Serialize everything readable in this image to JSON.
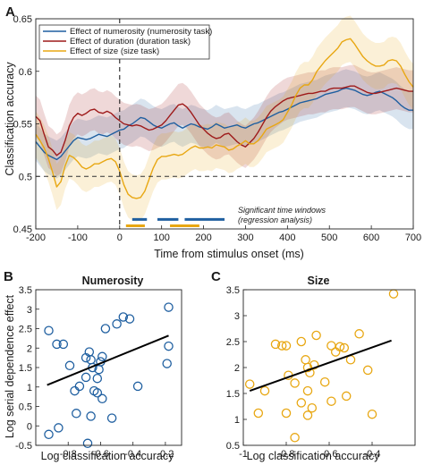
{
  "chart_data": [
    {
      "panel": "A",
      "type": "line",
      "xlabel": "Time from stimulus onset (ms)",
      "ylabel": "Classification accuracy",
      "xlim": [
        -200,
        700
      ],
      "ylim": [
        0.45,
        0.65
      ],
      "xticks": [
        -200,
        -100,
        0,
        100,
        200,
        300,
        400,
        500,
        600,
        700
      ],
      "yticks": [
        0.45,
        0.5,
        0.55,
        0.6,
        0.65
      ],
      "chance_level": 0.5,
      "onset_line_x": 0,
      "legend_position": "top-left",
      "x": [
        -200,
        -190,
        -180,
        -170,
        -160,
        -150,
        -140,
        -130,
        -120,
        -110,
        -100,
        -90,
        -80,
        -70,
        -60,
        -50,
        -40,
        -30,
        -20,
        -10,
        0,
        10,
        20,
        30,
        40,
        50,
        60,
        70,
        80,
        90,
        100,
        110,
        120,
        130,
        140,
        150,
        160,
        170,
        180,
        190,
        200,
        210,
        220,
        230,
        240,
        250,
        260,
        270,
        280,
        290,
        300,
        310,
        320,
        330,
        340,
        350,
        360,
        370,
        380,
        390,
        400,
        410,
        420,
        430,
        440,
        450,
        460,
        470,
        480,
        490,
        500,
        510,
        520,
        530,
        540,
        550,
        560,
        570,
        580,
        590,
        600,
        610,
        620,
        630,
        640,
        650,
        660,
        670,
        680,
        690,
        700
      ],
      "series": [
        {
          "name": "Effect of numerosity (numerosity task)",
          "color": "#1f5fa0",
          "band_halfwidth": 0.018,
          "values": [
            0.533,
            0.528,
            0.523,
            0.52,
            0.518,
            0.516,
            0.519,
            0.524,
            0.529,
            0.534,
            0.537,
            0.536,
            0.535,
            0.536,
            0.538,
            0.54,
            0.539,
            0.538,
            0.54,
            0.542,
            0.544,
            0.545,
            0.548,
            0.55,
            0.553,
            0.556,
            0.555,
            0.552,
            0.549,
            0.547,
            0.546,
            0.548,
            0.55,
            0.551,
            0.548,
            0.546,
            0.548,
            0.55,
            0.549,
            0.547,
            0.546,
            0.545,
            0.547,
            0.55,
            0.548,
            0.546,
            0.547,
            0.548,
            0.549,
            0.547,
            0.546,
            0.548,
            0.55,
            0.551,
            0.553,
            0.555,
            0.557,
            0.559,
            0.561,
            0.562,
            0.564,
            0.566,
            0.568,
            0.57,
            0.571,
            0.572,
            0.573,
            0.574,
            0.576,
            0.578,
            0.579,
            0.58,
            0.581,
            0.583,
            0.584,
            0.583,
            0.582,
            0.58,
            0.578,
            0.577,
            0.578,
            0.58,
            0.581,
            0.579,
            0.577,
            0.575,
            0.572,
            0.568,
            0.565,
            0.563,
            0.563
          ]
        },
        {
          "name": "Effect of duration (duration task)",
          "color": "#9e1a1a",
          "band_halfwidth": 0.02,
          "values": [
            0.557,
            0.553,
            0.54,
            0.528,
            0.525,
            0.52,
            0.523,
            0.534,
            0.548,
            0.556,
            0.56,
            0.558,
            0.56,
            0.563,
            0.564,
            0.561,
            0.56,
            0.562,
            0.56,
            0.556,
            0.553,
            0.55,
            0.549,
            0.548,
            0.549,
            0.548,
            0.546,
            0.544,
            0.545,
            0.547,
            0.549,
            0.553,
            0.558,
            0.563,
            0.568,
            0.569,
            0.566,
            0.561,
            0.555,
            0.549,
            0.545,
            0.541,
            0.538,
            0.536,
            0.537,
            0.54,
            0.541,
            0.537,
            0.533,
            0.53,
            0.528,
            0.532,
            0.536,
            0.542,
            0.549,
            0.556,
            0.562,
            0.566,
            0.569,
            0.572,
            0.574,
            0.575,
            0.576,
            0.577,
            0.578,
            0.579,
            0.579,
            0.58,
            0.581,
            0.581,
            0.583,
            0.584,
            0.584,
            0.584,
            0.585,
            0.586,
            0.586,
            0.584,
            0.582,
            0.58,
            0.579,
            0.579,
            0.58,
            0.581,
            0.582,
            0.583,
            0.584,
            0.583,
            0.582,
            0.581,
            0.581
          ]
        },
        {
          "name": "Effect of size (size task)",
          "color": "#e8a712",
          "band_halfwidth": 0.022,
          "values": [
            0.54,
            0.534,
            0.527,
            0.517,
            0.504,
            0.49,
            0.495,
            0.51,
            0.52,
            0.518,
            0.514,
            0.509,
            0.507,
            0.509,
            0.512,
            0.512,
            0.514,
            0.516,
            0.517,
            0.514,
            0.505,
            0.492,
            0.483,
            0.48,
            0.479,
            0.48,
            0.486,
            0.497,
            0.508,
            0.516,
            0.519,
            0.519,
            0.52,
            0.521,
            0.52,
            0.521,
            0.524,
            0.527,
            0.529,
            0.527,
            0.527,
            0.528,
            0.527,
            0.53,
            0.529,
            0.528,
            0.525,
            0.526,
            0.529,
            0.531,
            0.534,
            0.531,
            0.531,
            0.534,
            0.539,
            0.545,
            0.547,
            0.549,
            0.551,
            0.554,
            0.561,
            0.568,
            0.577,
            0.584,
            0.587,
            0.587,
            0.592,
            0.6,
            0.605,
            0.61,
            0.614,
            0.618,
            0.622,
            0.628,
            0.63,
            0.631,
            0.626,
            0.62,
            0.614,
            0.61,
            0.607,
            0.605,
            0.605,
            0.606,
            0.61,
            0.611,
            0.61,
            0.605,
            0.597,
            0.59,
            0.585
          ]
        }
      ],
      "annotation": [
        "Significant time windows",
        "(regression analysis)"
      ],
      "significance_bars": [
        {
          "color": "#1f5fa0",
          "y": 0.459,
          "spans": [
            [
              30,
              65
            ],
            [
              90,
              140
            ],
            [
              155,
              250
            ]
          ]
        },
        {
          "color": "#e8a712",
          "y": 0.453,
          "spans": [
            [
              15,
              60
            ],
            [
              120,
              190
            ]
          ]
        }
      ]
    },
    {
      "panel": "B",
      "type": "scatter",
      "title": "Numerosity",
      "xlabel": "Log classification accuracy",
      "ylabel": "Log serial dependence effect",
      "xlim": [
        -1,
        -0.1
      ],
      "ylim": [
        -0.5,
        3.5
      ],
      "xticks": [
        -0.8,
        -0.6,
        -0.4,
        -0.2
      ],
      "yticks": [
        -0.5,
        0,
        0.5,
        1,
        1.5,
        2,
        2.5,
        3,
        3.5
      ],
      "color": "#1f5fa0",
      "points": [
        [
          -0.92,
          2.45
        ],
        [
          -0.87,
          2.1
        ],
        [
          -0.83,
          2.1
        ],
        [
          -0.79,
          1.55
        ],
        [
          -0.76,
          0.9
        ],
        [
          -0.73,
          1.02
        ],
        [
          -0.75,
          0.32
        ],
        [
          -0.67,
          1.9
        ],
        [
          -0.66,
          1.7
        ],
        [
          -0.65,
          1.5
        ],
        [
          -0.69,
          1.75
        ],
        [
          -0.69,
          1.25
        ],
        [
          -0.6,
          1.65
        ],
        [
          -0.59,
          1.78
        ],
        [
          -0.57,
          2.5
        ],
        [
          -0.61,
          1.45
        ],
        [
          -0.62,
          1.22
        ],
        [
          -0.64,
          0.9
        ],
        [
          -0.62,
          0.85
        ],
        [
          -0.59,
          0.7
        ],
        [
          -0.66,
          0.25
        ],
        [
          -0.68,
          -0.45
        ],
        [
          -0.86,
          -0.05
        ],
        [
          -0.92,
          -0.22
        ],
        [
          -0.53,
          0.2
        ],
        [
          -0.5,
          2.62
        ],
        [
          -0.46,
          2.8
        ],
        [
          -0.42,
          2.75
        ],
        [
          -0.37,
          1.02
        ],
        [
          -0.18,
          3.05
        ],
        [
          -0.18,
          2.05
        ],
        [
          -0.19,
          1.6
        ]
      ],
      "fit_line": [
        [
          -0.93,
          1.05
        ],
        [
          -0.18,
          2.32
        ]
      ]
    },
    {
      "panel": "C",
      "type": "scatter",
      "title": "Size",
      "xlabel": "Log classification accuracy",
      "ylabel": "",
      "xlim": [
        -1,
        -0.2
      ],
      "ylim": [
        0.5,
        3.5
      ],
      "xticks": [
        -1,
        -0.8,
        -0.6,
        -0.4
      ],
      "yticks": [
        0.5,
        1,
        1.5,
        2,
        2.5,
        3,
        3.5
      ],
      "color": "#e8a712",
      "points": [
        [
          -0.97,
          1.68
        ],
        [
          -0.93,
          1.12
        ],
        [
          -0.9,
          1.55
        ],
        [
          -0.85,
          2.45
        ],
        [
          -0.82,
          2.42
        ],
        [
          -0.8,
          2.42
        ],
        [
          -0.79,
          1.85
        ],
        [
          -0.76,
          1.7
        ],
        [
          -0.73,
          2.5
        ],
        [
          -0.8,
          1.12
        ],
        [
          -0.76,
          0.65
        ],
        [
          -0.73,
          1.32
        ],
        [
          -0.71,
          2.15
        ],
        [
          -0.7,
          2.0
        ],
        [
          -0.69,
          1.9
        ],
        [
          -0.7,
          1.55
        ],
        [
          -0.67,
          2.05
        ],
        [
          -0.68,
          1.22
        ],
        [
          -0.7,
          1.08
        ],
        [
          -0.66,
          2.62
        ],
        [
          -0.62,
          1.72
        ],
        [
          -0.59,
          2.42
        ],
        [
          -0.57,
          2.3
        ],
        [
          -0.55,
          2.4
        ],
        [
          -0.53,
          2.38
        ],
        [
          -0.5,
          2.15
        ],
        [
          -0.52,
          1.45
        ],
        [
          -0.59,
          1.35
        ],
        [
          -0.46,
          2.65
        ],
        [
          -0.42,
          1.95
        ],
        [
          -0.4,
          1.1
        ],
        [
          -0.3,
          3.42
        ]
      ],
      "fit_line": [
        [
          -0.97,
          1.55
        ],
        [
          -0.31,
          2.52
        ]
      ]
    }
  ]
}
